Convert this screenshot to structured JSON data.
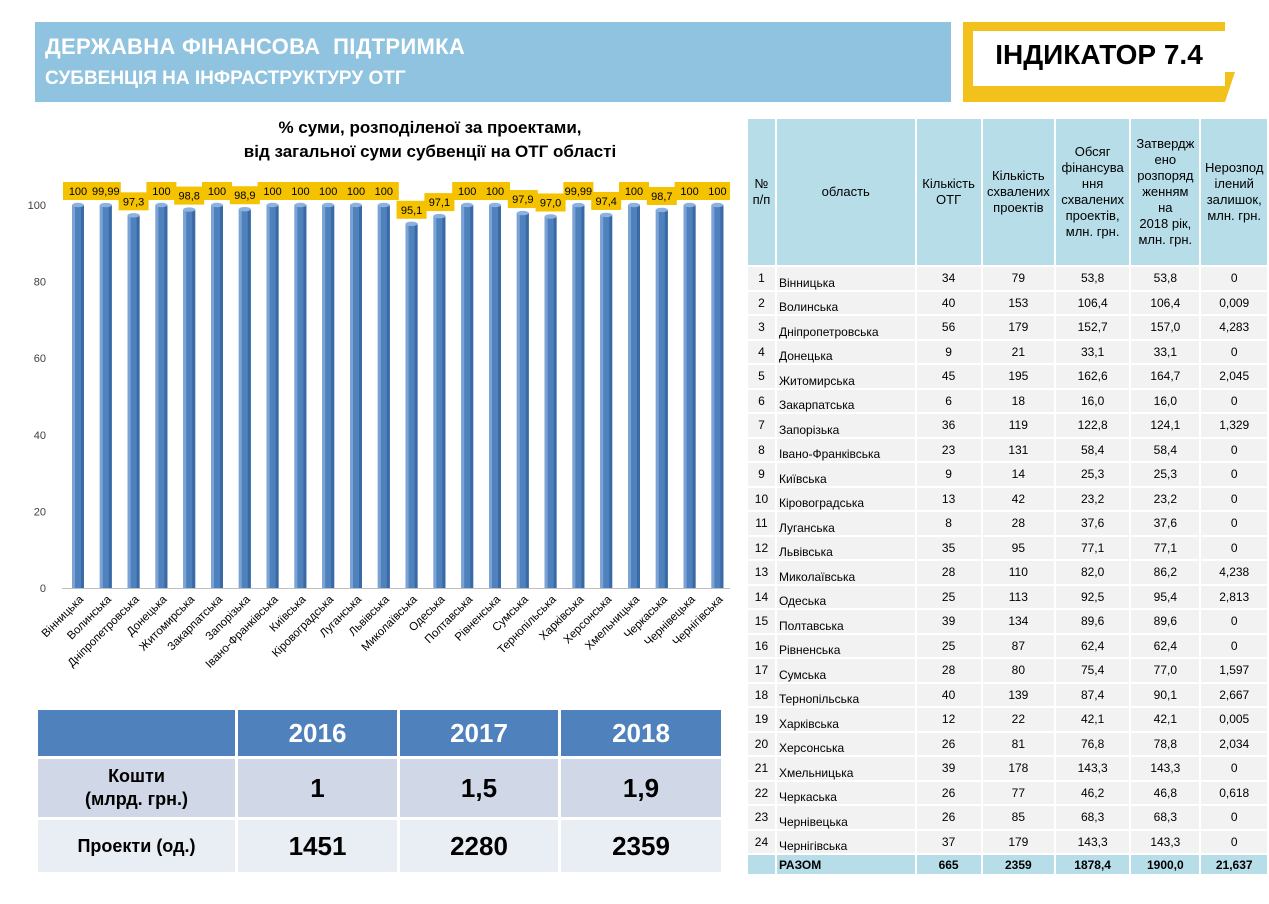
{
  "header": {
    "title": "ДЕРЖАВНА ФІНАНСОВА  ПІДТРИМКА",
    "subtitle": "СУБВЕНЦІЯ НА ІНФРАСТРУКТУРУ ОТГ",
    "indicator": "ІНДИКАТОР 7.4",
    "banner_color": "#8fc3df",
    "indicator_color": "#f3c11c"
  },
  "chart_data": {
    "type": "bar",
    "title_line1": "% суми, розподіленої за проектами,",
    "title_line2": "від загальної суми субвенції на ОТГ області",
    "categories": [
      "Вінницька",
      "Волинська",
      "Дніпропетровська",
      "Донецька",
      "Житомирська",
      "Закарпатська",
      "Запорізька",
      "Івано-Франківська",
      "Київська",
      "Кіровоградська",
      "Луганська",
      "Львівська",
      "Миколаївська",
      "Одеська",
      "Полтавська",
      "Рівненська",
      "Сумська",
      "Тернопільська",
      "Харківська",
      "Херсонська",
      "Хмельницька",
      "Черкаська",
      "Чернівецька",
      "Чернігівська"
    ],
    "values": [
      100,
      99.99,
      97.3,
      100,
      98.8,
      100,
      98.9,
      100,
      100,
      100,
      100,
      100,
      95.1,
      97.1,
      100,
      100,
      97.9,
      97.0,
      99.99,
      97.4,
      100,
      98.7,
      100,
      100
    ],
    "data_labels": [
      "100",
      "99,99",
      "97,3",
      "100",
      "98,8",
      "100",
      "98,9",
      "100",
      "100",
      "100",
      "100",
      "100",
      "95,1",
      "97,1",
      "100",
      "100",
      "97,9",
      "97,0",
      "99,99",
      "97,4",
      "100",
      "98,7",
      "100",
      "100"
    ],
    "ylim": [
      0,
      100
    ],
    "yticks": [
      "0",
      "20",
      "40",
      "60",
      "80",
      "100"
    ],
    "bar_color": "#4f81bd",
    "label_color": "#f5c200",
    "grid": false
  },
  "years_table": {
    "headers": [
      "2016",
      "2017",
      "2018"
    ],
    "rows": [
      {
        "label_line1": "Кошти",
        "label_line2": "(млрд. грн.)",
        "values": [
          "1",
          "1,5",
          "1,9"
        ]
      },
      {
        "label": "Проекти (од.)",
        "values": [
          "1451",
          "2280",
          "2359"
        ]
      }
    ]
  },
  "region_table": {
    "headers": {
      "num": [
        "№",
        "п/п"
      ],
      "oblast": "область",
      "otg": [
        "Кількість",
        "ОТГ"
      ],
      "projects": [
        "Кількість",
        "схвалених",
        "проектів"
      ],
      "funding": [
        "Обсяг",
        "фінансува",
        "ння",
        "схвалених",
        "проектів,",
        "млн. грн."
      ],
      "approved": [
        "Затвердж",
        "ено",
        "розпоряд",
        "женням",
        "на",
        "2018 рік,",
        "млн. грн."
      ],
      "remainder": [
        "Нерозпод",
        "ілений",
        "залишок,",
        "млн. грн."
      ]
    },
    "rows": [
      [
        "1",
        "Вінницька",
        "34",
        "79",
        "53,8",
        "53,8",
        "0"
      ],
      [
        "2",
        "Волинська",
        "40",
        "153",
        "106,4",
        "106,4",
        "0,009"
      ],
      [
        "3",
        "Дніпропетровська",
        "56",
        "179",
        "152,7",
        "157,0",
        "4,283"
      ],
      [
        "4",
        "Донецька",
        "9",
        "21",
        "33,1",
        "33,1",
        "0"
      ],
      [
        "5",
        "Житомирська",
        "45",
        "195",
        "162,6",
        "164,7",
        "2,045"
      ],
      [
        "6",
        "Закарпатська",
        "6",
        "18",
        "16,0",
        "16,0",
        "0"
      ],
      [
        "7",
        "Запорізька",
        "36",
        "119",
        "122,8",
        "124,1",
        "1,329"
      ],
      [
        "8",
        "Івано-Франківська",
        "23",
        "131",
        "58,4",
        "58,4",
        "0"
      ],
      [
        "9",
        "Київська",
        "9",
        "14",
        "25,3",
        "25,3",
        "0"
      ],
      [
        "10",
        "Кіровоградська",
        "13",
        "42",
        "23,2",
        "23,2",
        "0"
      ],
      [
        "11",
        "Луганська",
        "8",
        "28",
        "37,6",
        "37,6",
        "0"
      ],
      [
        "12",
        "Львівська",
        "35",
        "95",
        "77,1",
        "77,1",
        "0"
      ],
      [
        "13",
        "Миколаївська",
        "28",
        "110",
        "82,0",
        "86,2",
        "4,238"
      ],
      [
        "14",
        "Одеська",
        "25",
        "113",
        "92,5",
        "95,4",
        "2,813"
      ],
      [
        "15",
        "Полтавська",
        "39",
        "134",
        "89,6",
        "89,6",
        "0"
      ],
      [
        "16",
        "Рівненська",
        "25",
        "87",
        "62,4",
        "62,4",
        "0"
      ],
      [
        "17",
        "Сумська",
        "28",
        "80",
        "75,4",
        "77,0",
        "1,597"
      ],
      [
        "18",
        "Тернопільська",
        "40",
        "139",
        "87,4",
        "90,1",
        "2,667"
      ],
      [
        "19",
        "Харківська",
        "12",
        "22",
        "42,1",
        "42,1",
        "0,005"
      ],
      [
        "20",
        "Херсонська",
        "26",
        "81",
        "76,8",
        "78,8",
        "2,034"
      ],
      [
        "21",
        "Хмельницька",
        "39",
        "178",
        "143,3",
        "143,3",
        "0"
      ],
      [
        "22",
        "Черкаська",
        "26",
        "77",
        "46,2",
        "46,8",
        "0,618"
      ],
      [
        "23",
        "Чернівецька",
        "26",
        "85",
        "68,3",
        "68,3",
        "0"
      ],
      [
        "24",
        "Чернігівська",
        "37",
        "179",
        "143,3",
        "143,3",
        "0"
      ]
    ],
    "total": [
      "",
      "РАЗОМ",
      "665",
      "2359",
      "1878,4",
      "1900,0",
      "21,637"
    ]
  }
}
